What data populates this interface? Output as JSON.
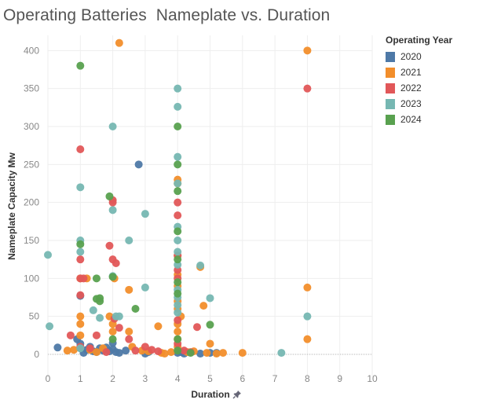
{
  "title": "Operating Batteries  Nameplate vs. Duration",
  "legend": {
    "title": "Operating Year",
    "items": [
      {
        "label": "2020",
        "color": "#4e79a7"
      },
      {
        "label": "2021",
        "color": "#f28e2b"
      },
      {
        "label": "2022",
        "color": "#e15759"
      },
      {
        "label": "2023",
        "color": "#76b7b2"
      },
      {
        "label": "2024",
        "color": "#59a14f"
      }
    ]
  },
  "pin_icon": "pin-icon",
  "chart_data": {
    "type": "scatter",
    "xlabel": "Duration",
    "ylabel": "Nameplate Capacity Mw",
    "xlim": [
      0,
      10
    ],
    "ylim": [
      -30,
      420
    ],
    "xticks": [
      "0",
      "1",
      "2",
      "3",
      "4",
      "5",
      "6",
      "7",
      "8",
      "9",
      "10"
    ],
    "yticks": [
      "0",
      "50",
      "100",
      "150",
      "200",
      "250",
      "300",
      "350",
      "400"
    ],
    "grid": true,
    "legend_position": "right",
    "series": [
      {
        "name": "2020",
        "color": "#4e79a7",
        "points": [
          [
            0.3,
            9
          ],
          [
            0.9,
            20
          ],
          [
            1.0,
            77
          ],
          [
            1.0,
            8
          ],
          [
            1.1,
            2
          ],
          [
            1.2,
            6
          ],
          [
            1.3,
            10
          ],
          [
            1.4,
            4
          ],
          [
            1.5,
            3
          ],
          [
            1.6,
            8
          ],
          [
            1.7,
            5
          ],
          [
            1.8,
            9
          ],
          [
            1.9,
            4
          ],
          [
            2.0,
            7
          ],
          [
            2.1,
            3
          ],
          [
            2.2,
            2
          ],
          [
            2.4,
            5
          ],
          [
            2.8,
            250
          ],
          [
            3.0,
            1
          ],
          [
            3.1,
            3
          ],
          [
            4.0,
            2
          ],
          [
            4.1,
            3
          ],
          [
            4.2,
            1
          ],
          [
            4.7,
            1
          ],
          [
            5.0,
            2
          ],
          [
            5.2,
            2
          ],
          [
            1.0,
            14
          ],
          [
            2.0,
            15
          ]
        ]
      },
      {
        "name": "2021",
        "color": "#f28e2b",
        "points": [
          [
            0.6,
            5
          ],
          [
            0.8,
            6
          ],
          [
            1.0,
            100
          ],
          [
            1.0,
            50
          ],
          [
            1.0,
            40
          ],
          [
            1.0,
            25
          ],
          [
            1.2,
            100
          ],
          [
            1.3,
            6
          ],
          [
            1.5,
            3
          ],
          [
            1.7,
            8
          ],
          [
            1.9,
            50
          ],
          [
            2.0,
            40
          ],
          [
            2.0,
            30
          ],
          [
            2.05,
            100
          ],
          [
            2.2,
            410
          ],
          [
            2.5,
            85
          ],
          [
            2.5,
            30
          ],
          [
            2.6,
            10
          ],
          [
            2.9,
            5
          ],
          [
            3.1,
            4
          ],
          [
            3.4,
            37
          ],
          [
            3.5,
            2
          ],
          [
            3.6,
            1
          ],
          [
            3.8,
            3
          ],
          [
            4.0,
            230
          ],
          [
            4.0,
            225
          ],
          [
            4.0,
            130
          ],
          [
            4.0,
            105
          ],
          [
            4.0,
            90
          ],
          [
            4.0,
            70
          ],
          [
            4.0,
            60
          ],
          [
            4.0,
            40
          ],
          [
            4.0,
            30
          ],
          [
            4.0,
            20
          ],
          [
            4.0,
            10
          ],
          [
            4.1,
            50
          ],
          [
            4.3,
            3
          ],
          [
            4.5,
            4
          ],
          [
            4.7,
            115
          ],
          [
            4.8,
            64
          ],
          [
            4.9,
            2
          ],
          [
            5.0,
            14
          ],
          [
            5.2,
            1
          ],
          [
            5.4,
            2
          ],
          [
            6.0,
            2
          ],
          [
            8.0,
            400
          ],
          [
            8.0,
            88
          ],
          [
            8.0,
            20
          ]
        ]
      },
      {
        "name": "2022",
        "color": "#e15759",
        "points": [
          [
            0.7,
            25
          ],
          [
            1.0,
            270
          ],
          [
            1.0,
            125
          ],
          [
            1.0,
            100
          ],
          [
            1.0,
            78
          ],
          [
            1.0,
            10
          ],
          [
            1.1,
            100
          ],
          [
            1.3,
            8
          ],
          [
            1.5,
            25
          ],
          [
            1.8,
            3
          ],
          [
            1.9,
            143
          ],
          [
            2.0,
            203
          ],
          [
            2.0,
            200
          ],
          [
            2.0,
            125
          ],
          [
            2.05,
            47
          ],
          [
            2.1,
            120
          ],
          [
            2.2,
            35
          ],
          [
            2.5,
            20
          ],
          [
            2.7,
            5
          ],
          [
            3.0,
            10
          ],
          [
            3.2,
            6
          ],
          [
            3.4,
            4
          ],
          [
            4.0,
            200
          ],
          [
            4.0,
            183
          ],
          [
            4.0,
            130
          ],
          [
            4.0,
            111
          ],
          [
            4.0,
            100
          ],
          [
            4.0,
            45
          ],
          [
            4.0,
            14
          ],
          [
            4.2,
            5
          ],
          [
            4.4,
            3
          ],
          [
            4.6,
            36
          ],
          [
            8.0,
            350
          ]
        ]
      },
      {
        "name": "2023",
        "color": "#76b7b2",
        "points": [
          [
            0.0,
            131
          ],
          [
            0.05,
            37
          ],
          [
            1.0,
            220
          ],
          [
            1.0,
            150
          ],
          [
            1.0,
            135
          ],
          [
            1.0,
            8
          ],
          [
            1.4,
            58
          ],
          [
            1.6,
            48
          ],
          [
            2.0,
            300
          ],
          [
            2.0,
            190
          ],
          [
            2.0,
            103
          ],
          [
            2.1,
            50
          ],
          [
            2.2,
            50
          ],
          [
            2.5,
            150
          ],
          [
            3.0,
            185
          ],
          [
            3.0,
            88
          ],
          [
            4.0,
            350
          ],
          [
            4.0,
            326
          ],
          [
            4.0,
            260
          ],
          [
            4.0,
            225
          ],
          [
            4.0,
            168
          ],
          [
            4.0,
            150
          ],
          [
            4.0,
            135
          ],
          [
            4.0,
            118
          ],
          [
            4.0,
            85
          ],
          [
            4.0,
            75
          ],
          [
            4.0,
            65
          ],
          [
            4.0,
            55
          ],
          [
            4.7,
            117
          ],
          [
            5.0,
            74
          ],
          [
            7.2,
            2
          ],
          [
            8.0,
            50
          ]
        ]
      },
      {
        "name": "2024",
        "color": "#59a14f",
        "points": [
          [
            1.0,
            380
          ],
          [
            1.0,
            145
          ],
          [
            1.5,
            100
          ],
          [
            1.5,
            73
          ],
          [
            1.6,
            74
          ],
          [
            1.6,
            70
          ],
          [
            1.9,
            208
          ],
          [
            2.0,
            102
          ],
          [
            2.0,
            20
          ],
          [
            2.7,
            60
          ],
          [
            4.0,
            300
          ],
          [
            4.0,
            250
          ],
          [
            4.0,
            215
          ],
          [
            4.0,
            162
          ],
          [
            4.0,
            125
          ],
          [
            4.0,
            95
          ],
          [
            4.0,
            80
          ],
          [
            4.0,
            20
          ],
          [
            4.0,
            5
          ],
          [
            4.4,
            2
          ],
          [
            5.0,
            39
          ]
        ]
      }
    ]
  }
}
